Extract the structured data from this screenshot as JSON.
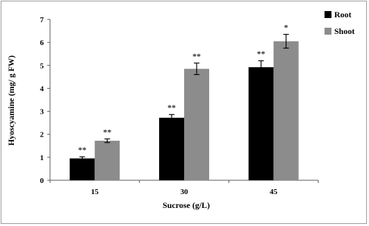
{
  "chart_data": {
    "type": "bar",
    "title": "",
    "xlabel": "Sucrose (g/L)",
    "ylabel": "Hyoscyamine (mg/ g FW)",
    "categories": [
      "15",
      "30",
      "45"
    ],
    "ylim": [
      0,
      7
    ],
    "yticks": [
      "0",
      "1",
      "2",
      "3",
      "4",
      "5",
      "6",
      "7"
    ],
    "grid": false,
    "legend_position": "top-right",
    "series": [
      {
        "name": "Root",
        "color": "#000000",
        "values": [
          0.95,
          2.72,
          4.92
        ],
        "errors": [
          0.07,
          0.14,
          0.28
        ],
        "significance": [
          "**",
          "**",
          "**"
        ]
      },
      {
        "name": "Shoot",
        "color": "#8c8c8c",
        "values": [
          1.72,
          4.85,
          6.05
        ],
        "errors": [
          0.08,
          0.25,
          0.3
        ],
        "significance": [
          "**",
          "**",
          "*"
        ]
      }
    ]
  }
}
